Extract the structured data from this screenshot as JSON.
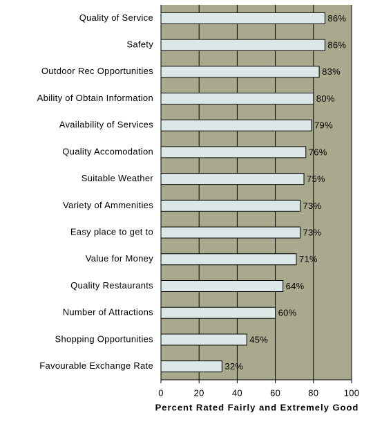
{
  "chart_data": {
    "type": "bar",
    "orientation": "horizontal",
    "x_label": "Percent Rated Fairly and Extremely Good",
    "categories": [
      "Quality of Service",
      "Safety",
      "Outdoor Rec Opportunities",
      "Ability of Obtain Information",
      "Availability of Services",
      "Quality Accomodation",
      "Suitable Weather",
      "Variety of Ammenities",
      "Easy place to get to",
      "Value for Money",
      "Quality Restaurants",
      "Number of Attractions",
      "Shopping Opportunities",
      "Favourable Exchange Rate"
    ],
    "values": [
      86,
      86,
      83,
      80,
      79,
      76,
      75,
      73,
      73,
      71,
      64,
      60,
      45,
      32
    ],
    "value_labels": [
      "86%",
      "86%",
      "83%",
      "80%",
      "79%",
      "76%",
      "75%",
      "73%",
      "73%",
      "71%",
      "64%",
      "60%",
      "45%",
      "32%"
    ],
    "color": "#dce8e8",
    "background": "#a9aa8d",
    "xlim": [
      0,
      100
    ],
    "xticks": [
      0,
      20,
      40,
      60,
      80,
      100
    ],
    "grid": true
  }
}
